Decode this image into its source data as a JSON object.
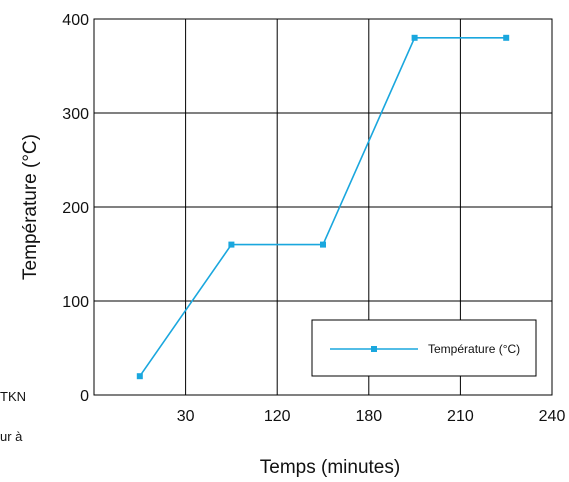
{
  "chart_data": {
    "type": "line",
    "xlabel": "Temps (minutes)",
    "ylabel": "Température (°C)",
    "x_ticks": [
      "30",
      "120",
      "180",
      "210",
      "240"
    ],
    "y_ticks": [
      "0",
      "100",
      "200",
      "300",
      "400"
    ],
    "ylim": [
      0,
      400
    ],
    "grid": true,
    "legend_position": "bottom-right",
    "series": [
      {
        "name": "Température (°C)",
        "color": "#1aa7de",
        "marker": "square",
        "points": [
          {
            "x_pos": 0.5,
            "y": 20
          },
          {
            "x_pos": 1.5,
            "y": 160
          },
          {
            "x_pos": 2.5,
            "y": 160
          },
          {
            "x_pos": 3.5,
            "y": 380
          },
          {
            "x_pos": 4.5,
            "y": 380
          }
        ]
      }
    ]
  },
  "clipped_text": [
    "TKN",
    "ur à"
  ]
}
